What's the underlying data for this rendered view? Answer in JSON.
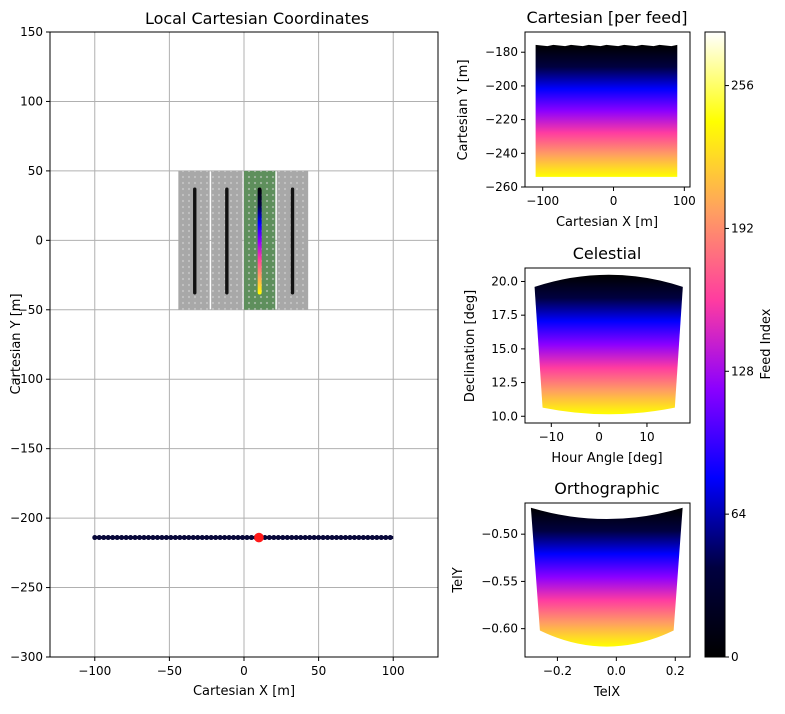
{
  "colors": {
    "grid": "#b0b0b0",
    "tile": "#a8a8a8",
    "tile_active": "#5e8f5c",
    "feed_line": "#111111",
    "track_dot": "#08083a",
    "current_pos": "#ff1a1a",
    "gnuplot2_stops": [
      "#000000",
      "#000040",
      "#0000ff",
      "#8b00ff",
      "#ff3ca0",
      "#ffa060",
      "#ffff00",
      "#ffffff"
    ]
  },
  "chart_data": [
    {
      "id": "local",
      "type": "scatter",
      "title": "Local Cartesian Coordinates",
      "xlabel": "Cartesian X [m]",
      "ylabel": "Cartesian Y [m]",
      "xlim": [
        -130,
        130
      ],
      "ylim": [
        -300,
        150
      ],
      "xticks": [
        -100,
        -50,
        0,
        50,
        100
      ],
      "yticks": [
        -300,
        -250,
        -200,
        -150,
        -100,
        -50,
        0,
        50,
        100,
        150
      ],
      "grid": true,
      "panels": [
        {
          "x0": -44,
          "x1": -23,
          "y0": -50,
          "y1": 50,
          "active": false
        },
        {
          "x0": -22,
          "x1": -1,
          "y0": -50,
          "y1": 50,
          "active": false
        },
        {
          "x0": 0,
          "x1": 21,
          "y0": -50,
          "y1": 50,
          "active": true
        },
        {
          "x0": 22,
          "x1": 43,
          "y0": -50,
          "y1": 50,
          "active": false
        }
      ],
      "feed_lines": [
        {
          "x": -33,
          "y0": -39,
          "y1": 38
        },
        {
          "x": -11.5,
          "y0": -39,
          "y1": 38
        },
        {
          "x": 10.5,
          "y0": -39,
          "y1": 38,
          "colored": true
        },
        {
          "x": 32.5,
          "y0": -39,
          "y1": 38
        }
      ],
      "track": {
        "y": -214,
        "x_start": -100,
        "x_end": 100,
        "step": 3
      },
      "current_position": {
        "x": 10,
        "y": -214
      }
    },
    {
      "id": "cartesian",
      "type": "heatmap",
      "title": "Cartesian [per feed]",
      "xlabel": "Cartesian X [m]",
      "ylabel": "Cartesian Y [m]",
      "xlim": [
        -125,
        108
      ],
      "ylim": [
        -260,
        -168
      ],
      "xticks": [
        -100,
        0,
        100
      ],
      "yticks": [
        -260,
        -240,
        -220,
        -200,
        -180
      ],
      "extent": {
        "x0": -110,
        "x1": 90,
        "y_top": -176,
        "y_bottom": -254
      }
    },
    {
      "id": "celestial",
      "type": "heatmap",
      "title": "Celestial",
      "xlabel": "Hour Angle [deg]",
      "ylabel": "Declination [deg]",
      "xlim": [
        -15.5,
        19
      ],
      "ylim": [
        9.5,
        21
      ],
      "xticks": [
        -10,
        0,
        10
      ],
      "yticks": [
        10.0,
        12.5,
        15.0,
        17.5,
        20.0
      ],
      "ytick_labels": [
        "10.0",
        "12.5",
        "15.0",
        "17.5",
        "20.0"
      ],
      "extent": {
        "x0": -13.5,
        "x1": 17.5,
        "y_top": 20.5,
        "y_bottom": 10.6,
        "sag_top": 0.9,
        "sag_bottom": 0.45
      }
    },
    {
      "id": "ortho",
      "type": "heatmap",
      "title": "Orthographic",
      "xlabel": "TelX",
      "ylabel": "TelY",
      "xlim": [
        -0.31,
        0.25
      ],
      "ylim": [
        -0.63,
        -0.467
      ],
      "xticks": [
        -0.2,
        0.0,
        0.2
      ],
      "xtick_labels": [
        "−0.2",
        "0.0",
        "0.2"
      ],
      "yticks": [
        -0.6,
        -0.55,
        -0.5
      ],
      "ytick_labels": [
        "−0.60",
        "−0.55",
        "−0.50"
      ],
      "extent": {
        "x0": -0.29,
        "x1": 0.225,
        "y_top_edge": -0.472,
        "y_top_mid": -0.484,
        "y_bot_edge": -0.602,
        "y_bot_mid": -0.619
      }
    }
  ],
  "colorbar": {
    "label": "Feed Index",
    "ticks": [
      0,
      64,
      128,
      192,
      256
    ],
    "max": 280
  }
}
